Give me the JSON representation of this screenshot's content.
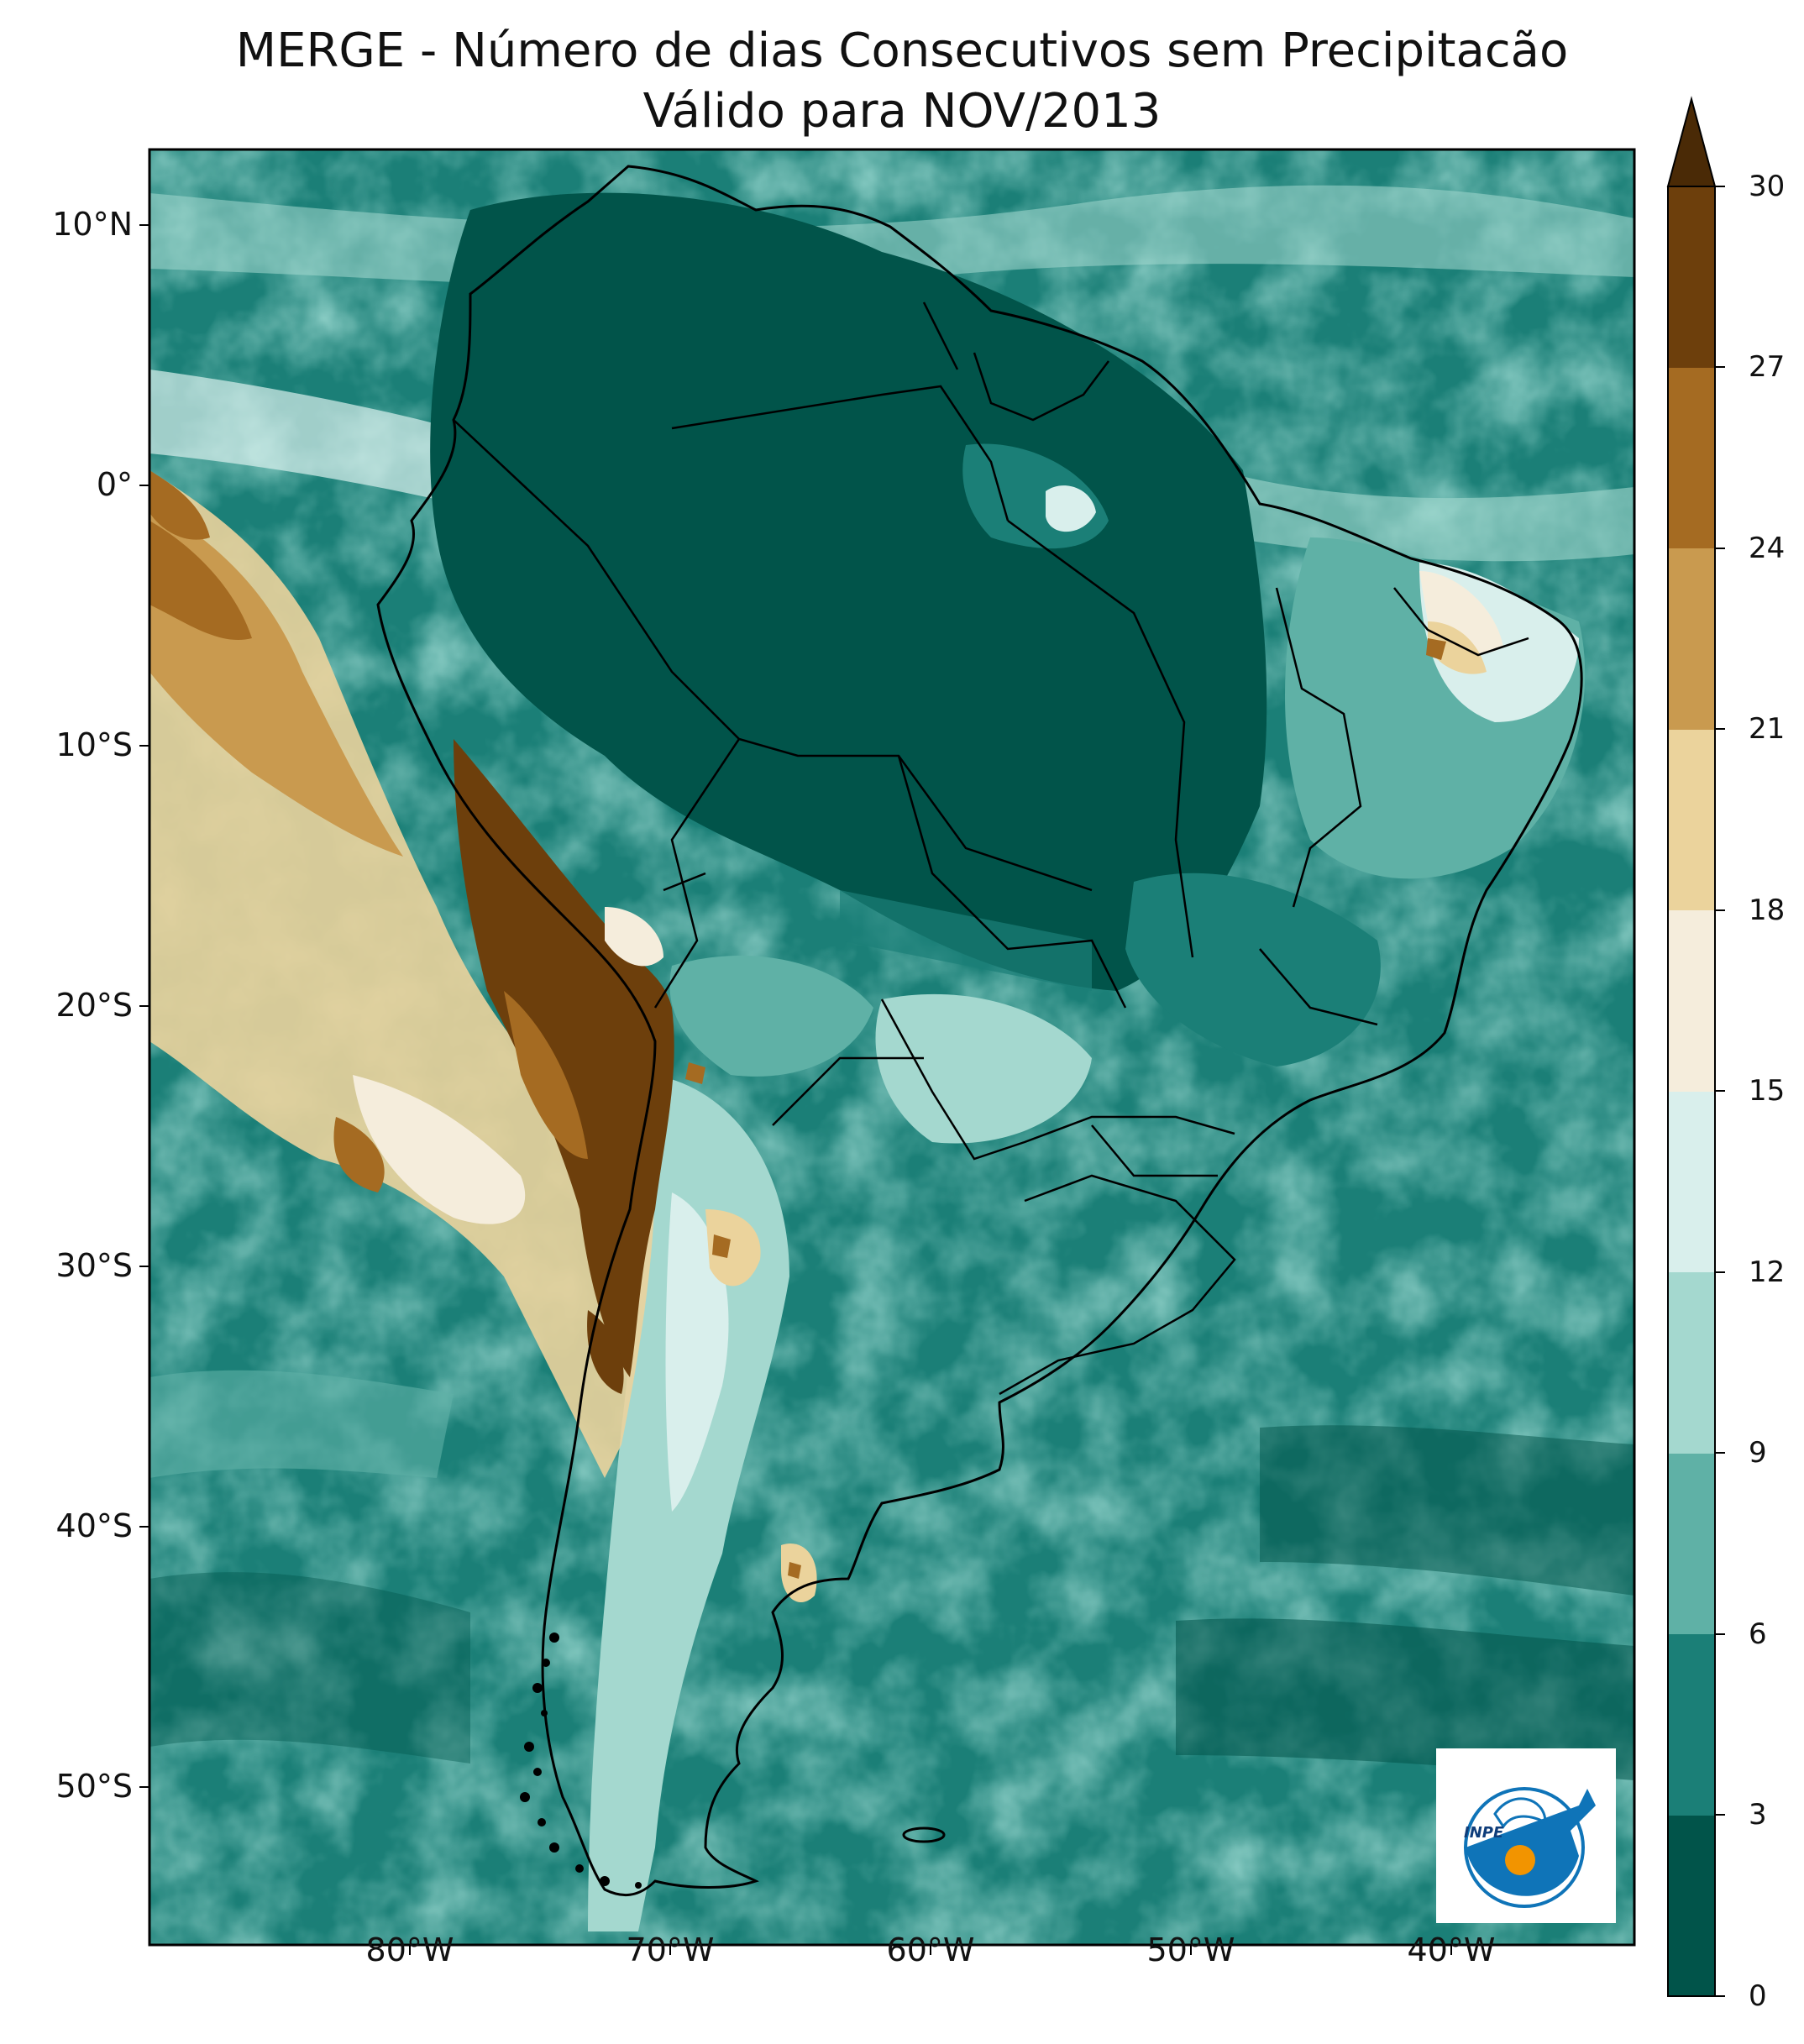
{
  "title": {
    "line1": "MERGE - Número de dias Consecutivos sem Precipitacão",
    "line2": "Válido para NOV/2013"
  },
  "map": {
    "lat_ticks": [
      "10°N",
      "0°",
      "10°S",
      "20°S",
      "30°S",
      "40°S",
      "50°S"
    ],
    "lon_ticks": [
      "80°W",
      "70°W",
      "60°W",
      "50°W",
      "40°W"
    ],
    "extent": {
      "lon": [
        -90,
        -33
      ],
      "lat": [
        -56,
        13
      ]
    }
  },
  "colorbar": {
    "ticks": [
      "0",
      "3",
      "6",
      "9",
      "12",
      "15",
      "18",
      "21",
      "24",
      "27",
      "30"
    ],
    "colors": [
      "#01544a",
      "#1b7f77",
      "#5fb1a6",
      "#a4d8cf",
      "#d9efec",
      "#f5eddc",
      "#ebd39c",
      "#c99a4f",
      "#a56b22",
      "#6d3f0c"
    ],
    "extend": "max"
  },
  "logo": {
    "text": "INPE"
  }
}
